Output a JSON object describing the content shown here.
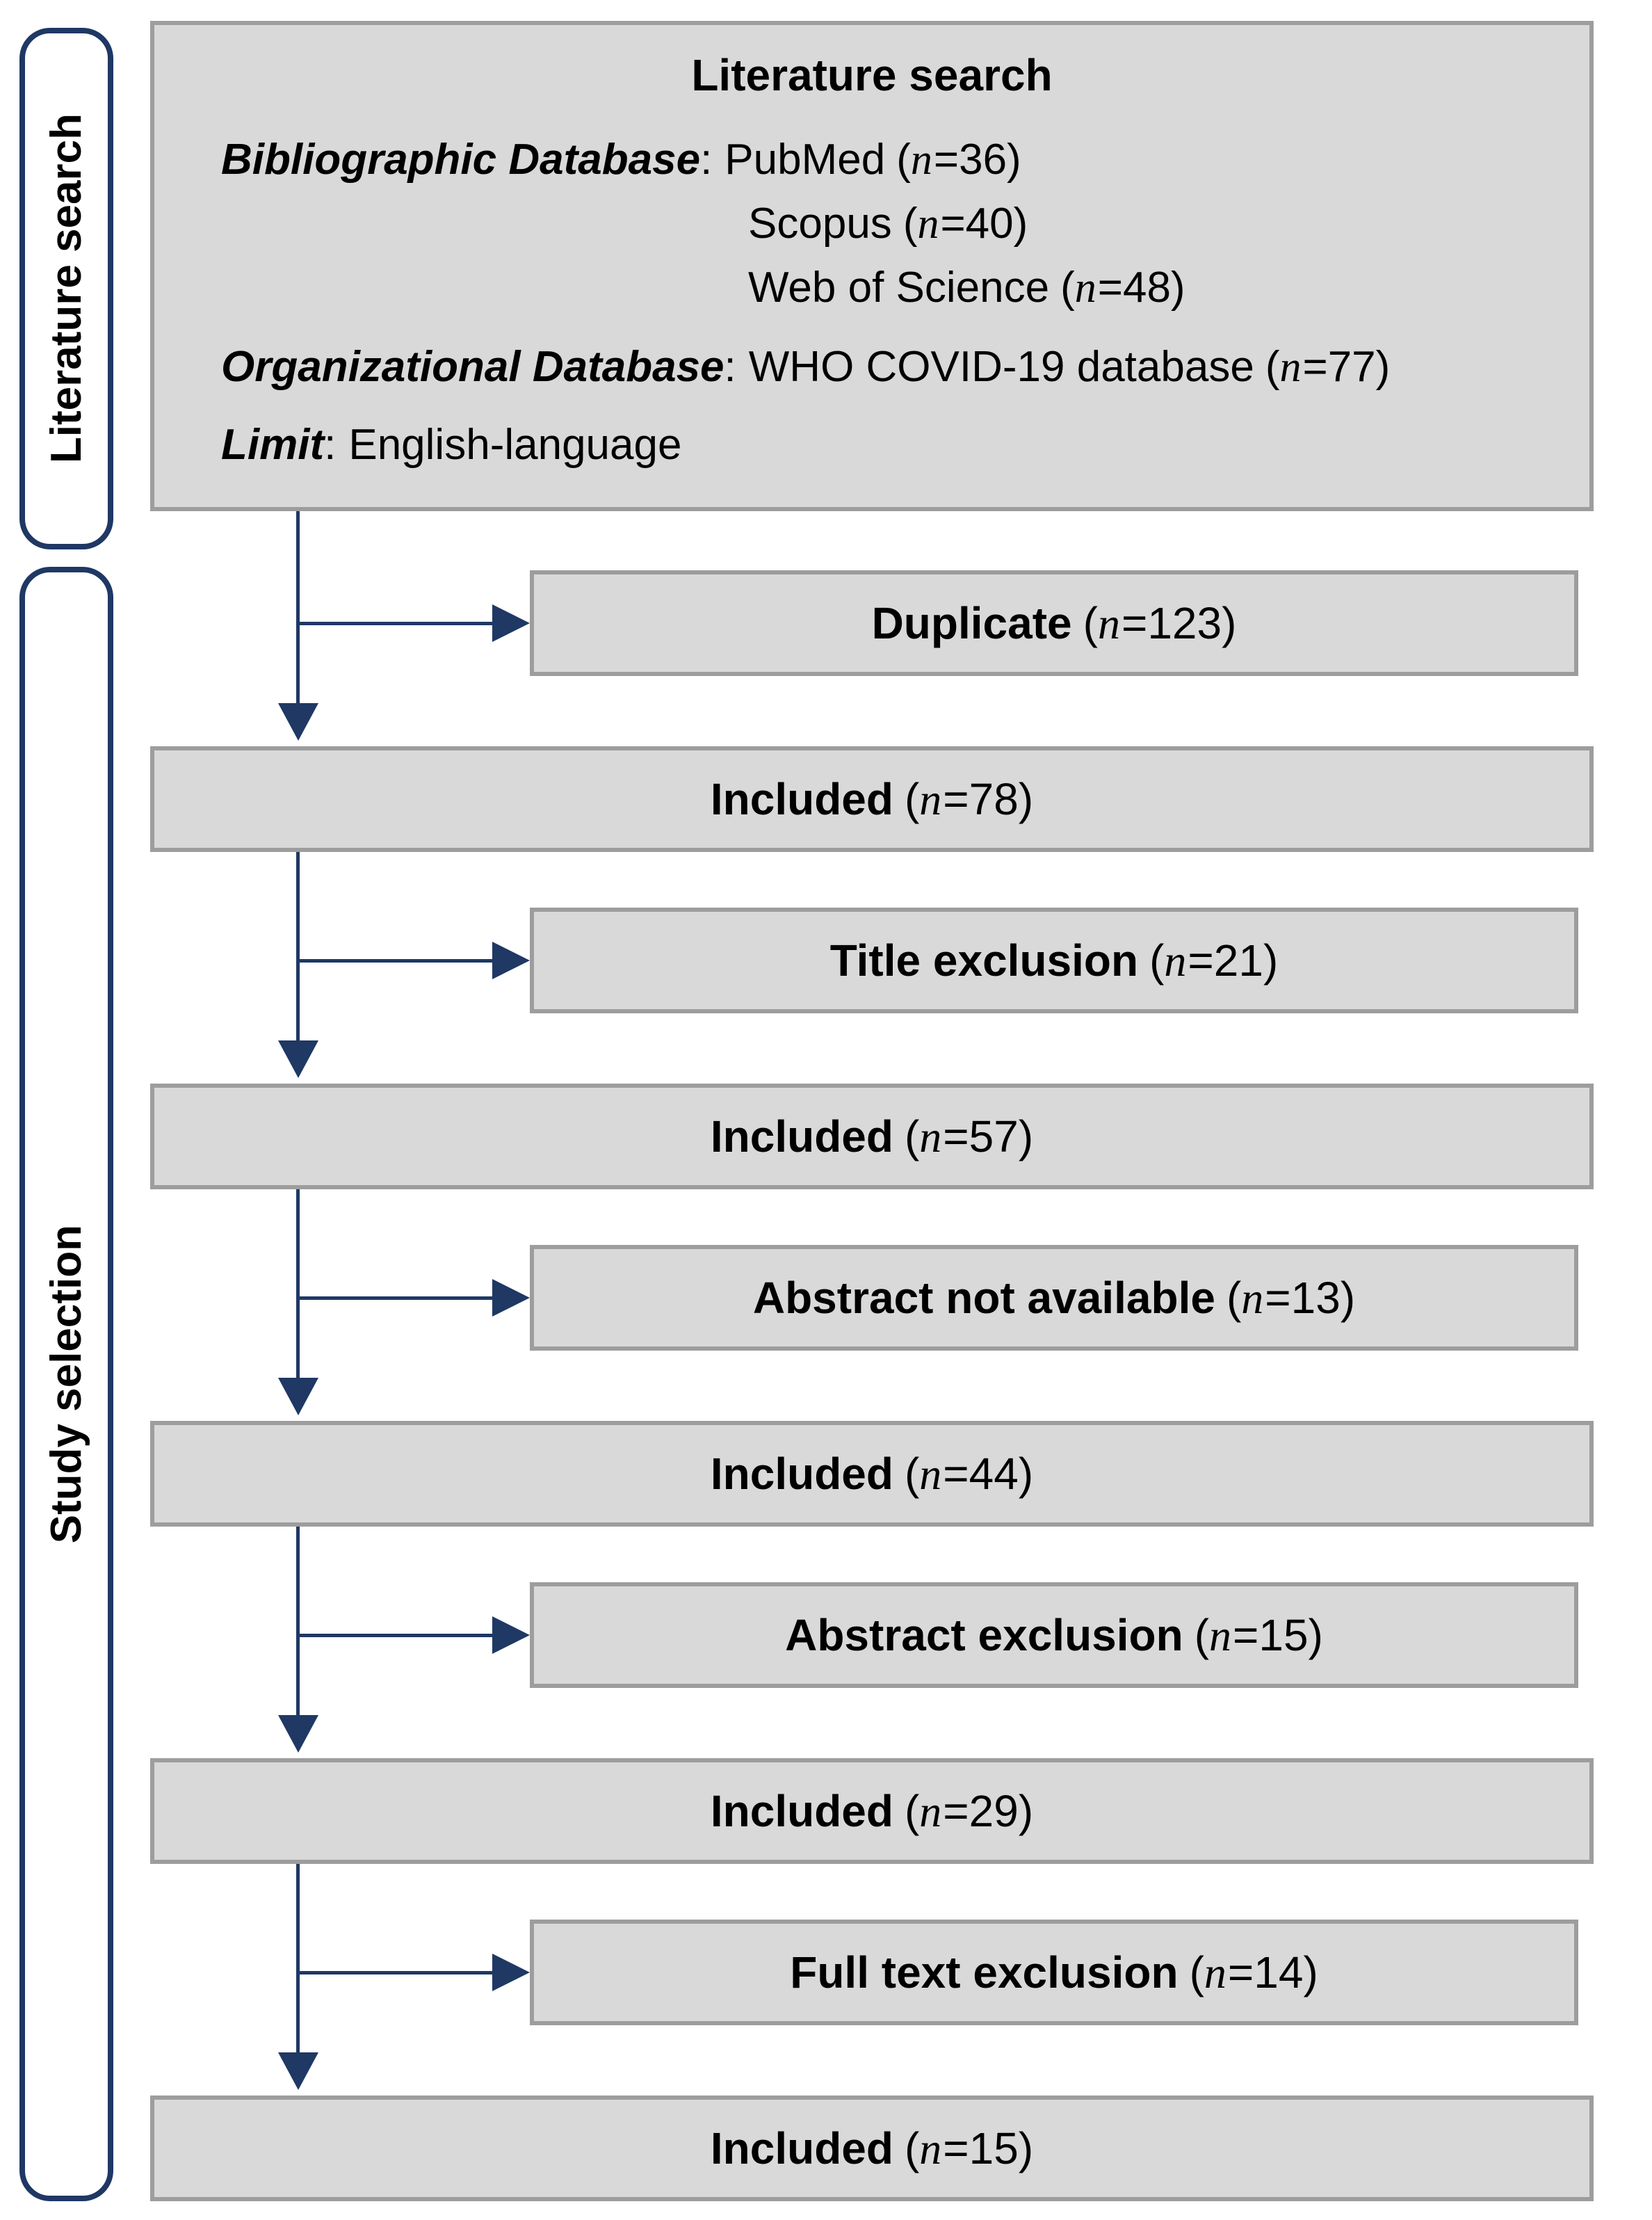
{
  "palette": {
    "navy": "#1f3864",
    "box_fill": "#d9d9d9",
    "box_border": "#9d9d9d",
    "text": "#000000",
    "background": "#ffffff"
  },
  "symbols": {
    "colon": ":",
    "open": "(",
    "n": "n",
    "eq": "=",
    "close": ")"
  },
  "sidebar": {
    "literature_label": "Literature search",
    "study_label": "Study selection"
  },
  "search_box": {
    "title": "Literature search",
    "bibliographic": {
      "label": "Bibliographic Database",
      "entries": [
        {
          "name": "PubMed",
          "n": "36"
        },
        {
          "name": "Scopus",
          "n": "40"
        },
        {
          "name": "Web of Science",
          "n": "48"
        }
      ]
    },
    "organizational": {
      "label": "Organizational Database",
      "entry": {
        "name": "WHO COVID-19 database",
        "n": "77"
      }
    },
    "limit": {
      "label": "Limit",
      "value": "English-language"
    }
  },
  "flow": {
    "side_boxes": [
      {
        "label": "Duplicate",
        "n": "123"
      },
      {
        "label": "Title exclusion",
        "n": "21"
      },
      {
        "label": "Abstract not available",
        "n": "13"
      },
      {
        "label": "Abstract exclusion",
        "n": "15"
      },
      {
        "label": "Full text exclusion",
        "n": "14"
      }
    ],
    "main_boxes": [
      {
        "label": "Included",
        "n": "78"
      },
      {
        "label": "Included",
        "n": "57"
      },
      {
        "label": "Included",
        "n": "44"
      },
      {
        "label": "Included",
        "n": "29"
      },
      {
        "label": "Included",
        "n": "15"
      }
    ]
  }
}
